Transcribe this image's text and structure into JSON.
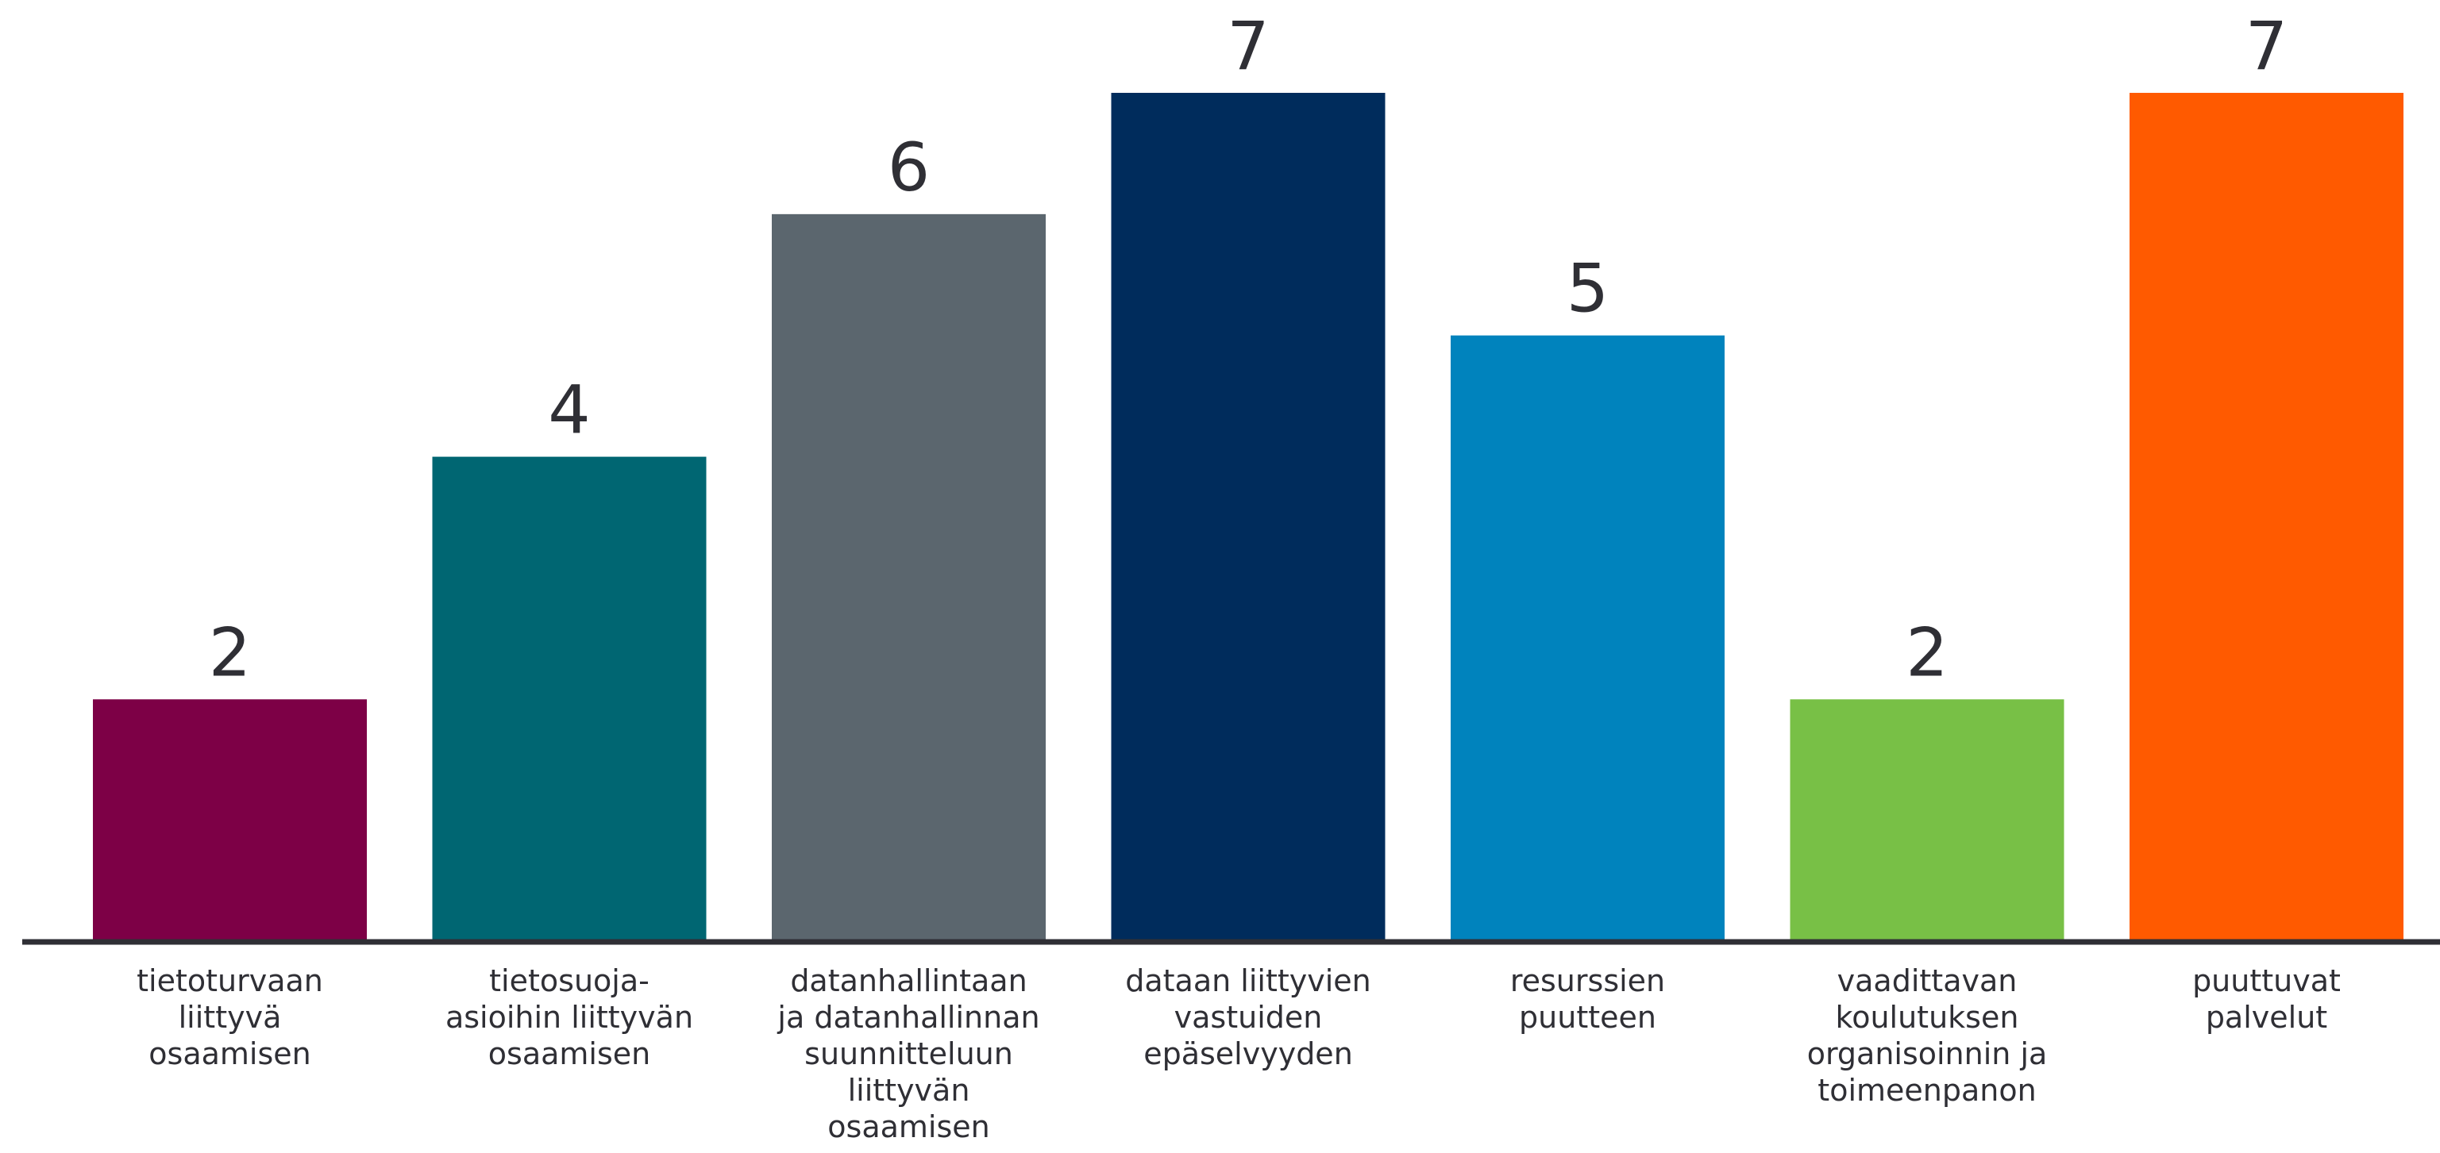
{
  "chart_data": {
    "type": "bar",
    "categories": [
      "tietoturvaan liittyvä osaamisen",
      "tietosuoja-asioihin liittyvän osaamisen",
      "datanhallintaan ja datanhallinnan suunnitteluun liittyvän osaamisen",
      "dataan liittyvien vastuiden epäselvyyden",
      "resurssien puutteen",
      "vaadittavan koulutuksen organisoinnin ja toimeenpanon",
      "puuttuvat palvelut"
    ],
    "category_lines": [
      [
        "tietoturvaan",
        "liittyvä",
        "osaamisen"
      ],
      [
        "tietosuoja-",
        "asioihin liittyvän",
        "osaamisen"
      ],
      [
        "datanhallintaan",
        "ja datanhallinnan",
        "suunnitteluun",
        "liittyvän",
        "osaamisen"
      ],
      [
        "dataan liittyvien",
        "vastuiden",
        "epäselvyyden"
      ],
      [
        "resurssien",
        "puutteen"
      ],
      [
        "vaadittavan",
        "koulutuksen",
        "organisoinnin ja",
        "toimeenpanon"
      ],
      [
        "puuttuvat",
        "palvelut"
      ]
    ],
    "values": [
      2,
      4,
      6,
      7,
      5,
      2,
      7
    ],
    "value_labels": [
      "2",
      "4",
      "6",
      "7",
      "5",
      "2",
      "7"
    ],
    "colors": [
      "#7d0046",
      "#006672",
      "#5b666e",
      "#002c5c",
      "#0083bd",
      "#78c046",
      "#ff5a00"
    ],
    "ylim": [
      0,
      7
    ],
    "grid": false,
    "legend": "none",
    "axis_color": "#2f2f35",
    "text_color": "#2f2f35"
  }
}
